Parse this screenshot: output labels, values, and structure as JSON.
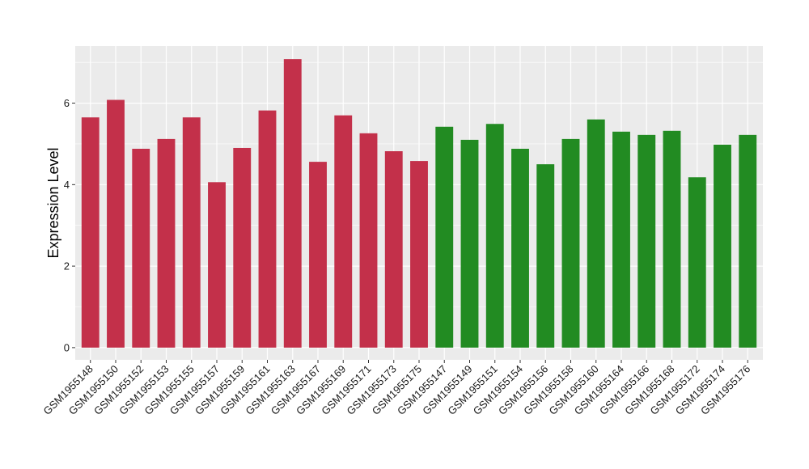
{
  "chart_data": {
    "type": "bar",
    "title": "",
    "xlabel": "",
    "ylabel": "Expression Level",
    "ylim": [
      -0.3,
      7.4
    ],
    "yticks": [
      0,
      2,
      4,
      6
    ],
    "grid": true,
    "legend": "none",
    "colors": {
      "group1": "#C3304A",
      "group2": "#228B22",
      "panel": "#EBEBEB",
      "gridline": "#FFFFFF"
    },
    "categories": [
      "GSM1955148",
      "GSM1955150",
      "GSM1955152",
      "GSM1955153",
      "GSM1955155",
      "GSM1955157",
      "GSM1955159",
      "GSM1955161",
      "GSM1955163",
      "GSM1955167",
      "GSM1955169",
      "GSM1955171",
      "GSM1955173",
      "GSM1955175",
      "GSM1955147",
      "GSM1955149",
      "GSM1955151",
      "GSM1955154",
      "GSM1955156",
      "GSM1955158",
      "GSM1955160",
      "GSM1955164",
      "GSM1955166",
      "GSM1955168",
      "GSM1955172",
      "GSM1955174",
      "GSM1955176"
    ],
    "values": [
      5.65,
      6.08,
      4.88,
      5.12,
      5.65,
      4.06,
      4.9,
      5.82,
      7.08,
      4.56,
      5.7,
      5.26,
      4.82,
      4.58,
      5.42,
      5.1,
      5.49,
      4.88,
      4.5,
      5.12,
      5.6,
      5.3,
      5.22,
      5.32,
      4.18,
      4.98,
      5.22
    ],
    "groups": [
      1,
      1,
      1,
      1,
      1,
      1,
      1,
      1,
      1,
      1,
      1,
      1,
      1,
      1,
      2,
      2,
      2,
      2,
      2,
      2,
      2,
      2,
      2,
      2,
      2,
      2,
      2
    ]
  }
}
